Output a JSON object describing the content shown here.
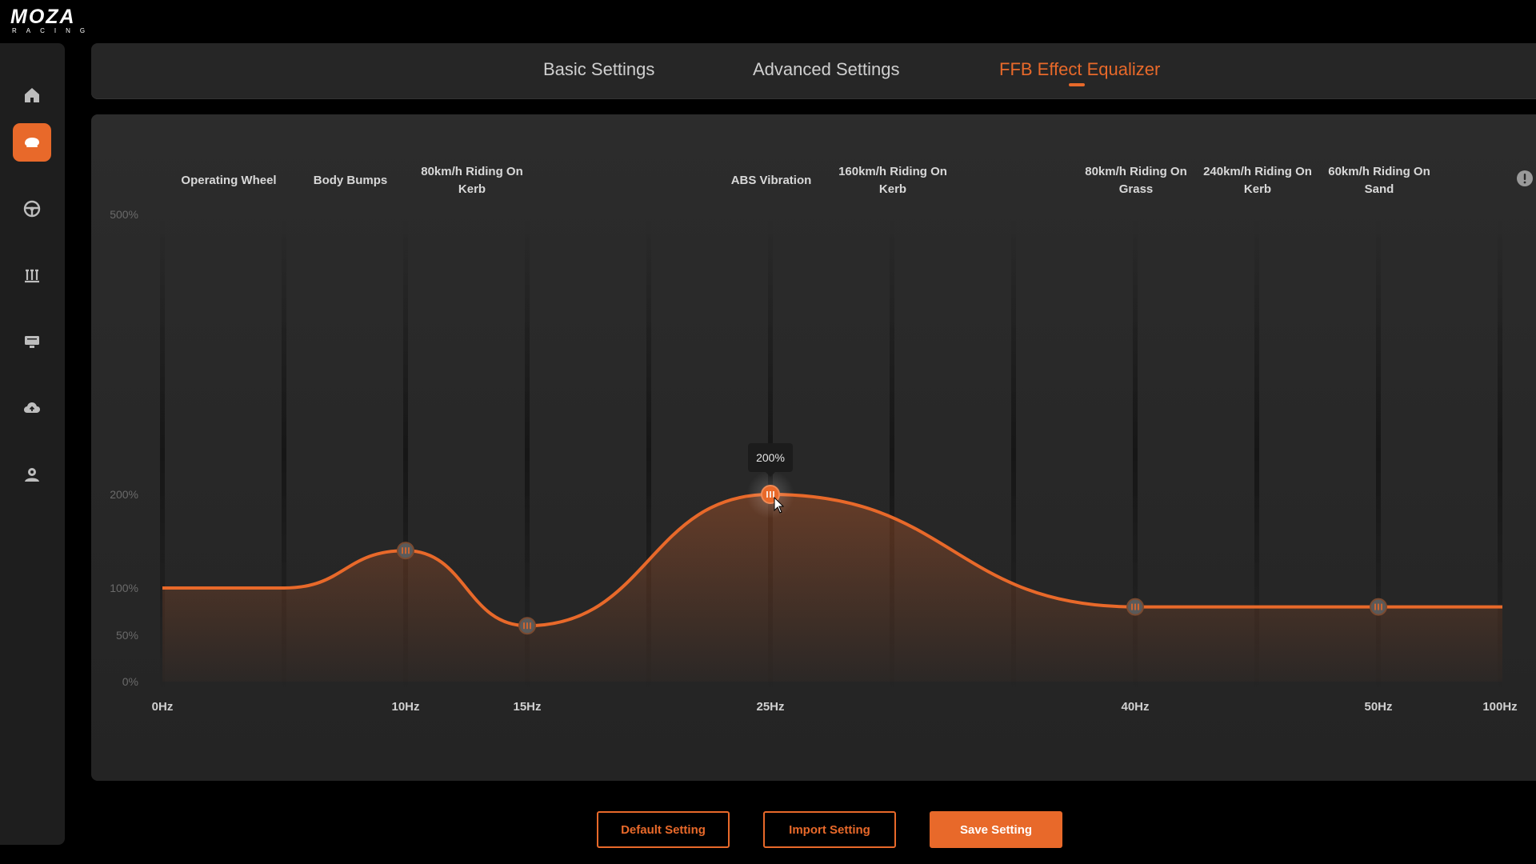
{
  "app": {
    "logo_main": "MOZA",
    "logo_sub": "RACING"
  },
  "sidebar": {
    "items": [
      {
        "icon": "home-icon",
        "active": false
      },
      {
        "icon": "wheelbase-icon",
        "active": true
      },
      {
        "icon": "steering-wheel-icon",
        "active": false
      },
      {
        "icon": "pedals-icon",
        "active": false
      },
      {
        "icon": "dashboard-display-icon",
        "active": false
      },
      {
        "icon": "cloud-upload-icon",
        "active": false
      },
      {
        "icon": "user-icon",
        "active": false
      }
    ]
  },
  "tabs": [
    {
      "label": "Basic Settings",
      "active": false
    },
    {
      "label": "Advanced Settings",
      "active": false
    },
    {
      "label": "FFB Effect Equalizer",
      "active": true
    }
  ],
  "effects": [
    {
      "label": "Operating Wheel"
    },
    {
      "label": "Body Bumps"
    },
    {
      "label": "80km/h Riding On Kerb"
    },
    {
      "label": "ABS Vibration"
    },
    {
      "label": "160km/h Riding On Kerb"
    },
    {
      "label": "80km/h Riding On Grass"
    },
    {
      "label": "240km/h Riding On Kerb"
    },
    {
      "label": "60km/h Riding On Sand"
    }
  ],
  "tooltip": {
    "text": "200%"
  },
  "colors": {
    "accent": "#e8692a",
    "panel": "#2a2a2a",
    "background": "#000000"
  },
  "chart_data": {
    "type": "area",
    "y_ticks": [
      "500%",
      "200%",
      "100%",
      "50%",
      "0%"
    ],
    "x_ticks": [
      "0Hz",
      "10Hz",
      "15Hz",
      "25Hz",
      "40Hz",
      "50Hz",
      "100Hz"
    ],
    "band_count": 12,
    "series": [
      {
        "values": [
          {
            "x": "0Hz",
            "y": 100
          },
          {
            "x": "10Hz",
            "y": 140
          },
          {
            "x": "15Hz",
            "y": 60
          },
          {
            "x": "25Hz",
            "y": 200
          },
          {
            "x": "40Hz",
            "y": 80
          },
          {
            "x": "50Hz",
            "y": 80
          },
          {
            "x": "100Hz",
            "y": 80
          }
        ]
      }
    ],
    "handles_at": [
      "10Hz",
      "15Hz",
      "25Hz",
      "40Hz",
      "50Hz"
    ],
    "selected": "25Hz",
    "grid": true
  },
  "buttons": {
    "default": "Default Setting",
    "import": "Import Setting",
    "save": "Save Setting"
  }
}
